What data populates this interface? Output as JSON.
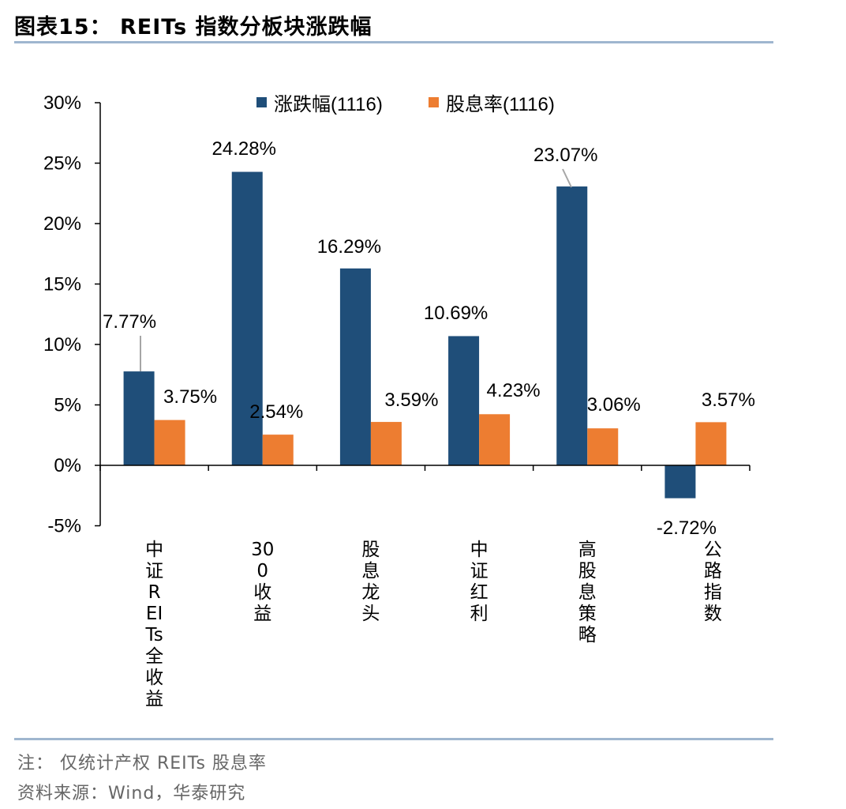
{
  "header": {
    "title": "图表15：  REITs 指数分板块涨跌幅"
  },
  "colors": {
    "series1": "#1f4e79",
    "series2": "#ed7d31",
    "rule": "#9fb6cf"
  },
  "chart_data": {
    "type": "bar",
    "title": "图表15：  REITs 指数分板块涨跌幅",
    "categories": [
      "中证REITs全收益",
      "300收益",
      "股息龙头",
      "中证红利",
      "高股息策略",
      "公路指数"
    ],
    "series": [
      {
        "name": "涨跌幅(1116)",
        "values": [
          7.77,
          24.28,
          16.29,
          10.69,
          23.07,
          -2.72
        ],
        "labels": [
          "7.77%",
          "24.28%",
          "16.29%",
          "10.69%",
          "23.07%",
          "-2.72%"
        ]
      },
      {
        "name": "股息率(1116)",
        "values": [
          3.75,
          2.54,
          3.59,
          4.23,
          3.06,
          3.57
        ],
        "labels": [
          "3.75%",
          "2.54%",
          "3.59%",
          "4.23%",
          "3.06%",
          "3.57%"
        ]
      }
    ],
    "ylim": [
      -5,
      30
    ],
    "yticks": [
      -5,
      0,
      5,
      10,
      15,
      20,
      25,
      30
    ],
    "ytick_labels": [
      "-5%",
      "0%",
      "5%",
      "10%",
      "15%",
      "20%",
      "25%",
      "30%"
    ],
    "legend_position": "top-center",
    "grid": false,
    "xlabel": "",
    "ylabel": ""
  },
  "footer": {
    "note": "注：  仅统计产权 REITs 股息率",
    "source": "资料来源：Wind，华泰研究"
  }
}
